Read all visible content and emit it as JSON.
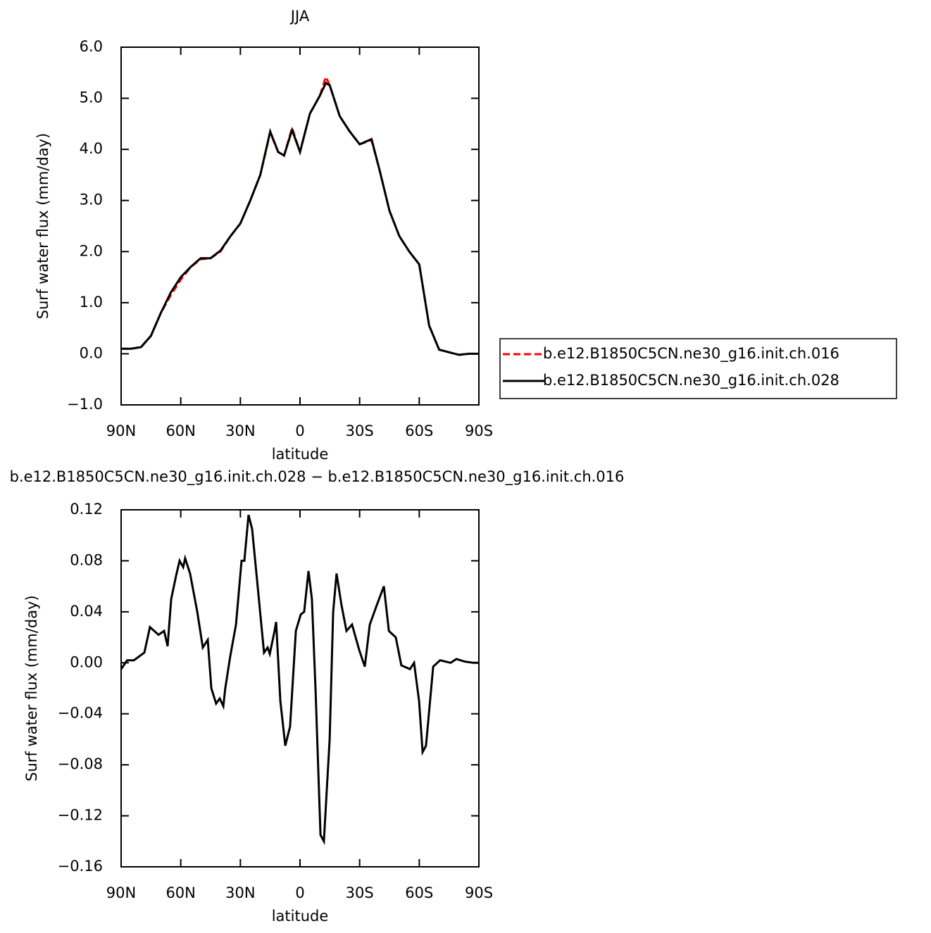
{
  "chart_data": [
    {
      "type": "line",
      "title": "JJA",
      "xlabel": "latitude",
      "ylabel": "Surf water flux (mm/day)",
      "x": [
        90,
        85,
        80,
        75,
        70,
        65,
        60,
        55,
        50,
        45,
        40,
        35,
        30,
        25,
        20,
        15,
        11,
        8,
        4,
        0,
        -5,
        -10,
        -13,
        -15,
        -20,
        -25,
        -30,
        -36,
        -40,
        -45,
        -50,
        -55,
        -60,
        -65,
        -70,
        -75,
        -80,
        -85,
        -90
      ],
      "series": [
        {
          "name": "b.e12.B1850C5CN.ne30_g16.init.ch.016",
          "color": "#ff0000",
          "dashed": true,
          "values": [
            0.1,
            0.1,
            0.13,
            0.35,
            0.8,
            1.15,
            1.45,
            1.7,
            1.85,
            1.87,
            2.0,
            2.3,
            2.55,
            3.0,
            3.5,
            4.33,
            3.95,
            3.88,
            4.42,
            3.95,
            4.7,
            5.05,
            5.42,
            5.25,
            4.65,
            4.35,
            4.1,
            4.18,
            3.6,
            2.8,
            2.3,
            2.0,
            1.75,
            0.55,
            0.08,
            0.03,
            -0.02,
            0.0,
            0.0
          ]
        },
        {
          "name": "b.e12.B1850C5CN.ne30_g16.init.ch.028",
          "color": "#000000",
          "dashed": false,
          "values": [
            0.1,
            0.1,
            0.13,
            0.35,
            0.8,
            1.2,
            1.5,
            1.7,
            1.87,
            1.87,
            2.02,
            2.3,
            2.55,
            3.0,
            3.5,
            4.35,
            3.95,
            3.88,
            4.38,
            3.95,
            4.7,
            5.05,
            5.3,
            5.25,
            4.65,
            4.35,
            4.1,
            4.2,
            3.6,
            2.8,
            2.3,
            2.0,
            1.75,
            0.55,
            0.08,
            0.03,
            -0.02,
            0.0,
            0.0
          ]
        }
      ],
      "xlim": [
        90,
        -90
      ],
      "xticks": [
        {
          "value": 90,
          "label": "90N"
        },
        {
          "value": 60,
          "label": "60N"
        },
        {
          "value": 30,
          "label": "30N"
        },
        0,
        {
          "value": -30,
          "label": "30S"
        },
        {
          "value": -60,
          "label": "60S"
        },
        {
          "value": -90,
          "label": "90S"
        }
      ],
      "ylim": [
        -1,
        6
      ],
      "yticks": [
        {
          "value": 6,
          "label": "6.0"
        },
        {
          "value": 5,
          "label": "5.0"
        },
        {
          "value": 4,
          "label": "4.0"
        },
        {
          "value": 3,
          "label": "3.0"
        },
        {
          "value": 2,
          "label": "2.0"
        },
        {
          "value": 1,
          "label": "1.0"
        },
        {
          "value": 0,
          "label": "0.0"
        },
        {
          "value": -1,
          "label": "−1.0"
        }
      ],
      "legend": "right"
    },
    {
      "type": "line",
      "title": "b.e12.B1850C5CN.ne30_g16.init.ch.028 − b.e12.B1850C5CN.ne30_g16.init.ch.016",
      "xlabel": "latitude",
      "ylabel": "Surf water flux (mm/day)",
      "x": [
        90,
        87,
        83.6,
        78.3,
        75.5,
        71.2,
        68.4,
        66.6,
        64.8,
        62.4,
        60.6,
        58.8,
        57.8,
        55.3,
        51.7,
        48.9,
        46.4,
        44.6,
        42.2,
        40.4,
        38.6,
        37.6,
        35.1,
        32.2,
        29.4,
        28,
        25.9,
        24.1,
        21.6,
        18.1,
        16.3,
        15.2,
        12.8,
        12,
        9.9,
        7.4,
        5,
        2.1,
        -0.4,
        -2.1,
        -4.3,
        -6,
        -7.8,
        -10.3,
        -12,
        -14.9,
        -16.7,
        -18.4,
        -20.9,
        -23.4,
        -26.2,
        -29.8,
        -32.6,
        -35.1,
        -38.6,
        -42.2,
        -44.7,
        -48.2,
        -51,
        -55.3,
        -57.4,
        -59.9,
        -61.7,
        -63.4,
        -67,
        -70.5,
        -75.8,
        -78.7,
        -82.9,
        -87.2,
        -90
      ],
      "series": [
        {
          "color": "#000000",
          "dashed": false,
          "values": [
            -0.005,
            0.002,
            0.002,
            0.008,
            0.028,
            0.022,
            0.025,
            0.013,
            0.05,
            0.068,
            0.08,
            0.075,
            0.082,
            0.07,
            0.04,
            0.012,
            0.018,
            -0.02,
            -0.032,
            -0.028,
            -0.034,
            -0.02,
            0.005,
            0.03,
            0.08,
            0.08,
            0.116,
            0.105,
            0.065,
            0.008,
            0.012,
            0.007,
            0.025,
            0.032,
            -0.03,
            -0.065,
            -0.05,
            0.025,
            0.038,
            0.04,
            0.072,
            0.05,
            -0.02,
            -0.135,
            -0.14,
            -0.06,
            0.04,
            0.07,
            0.045,
            0.025,
            0.03,
            0.01,
            -0.003,
            0.03,
            0.045,
            0.06,
            0.025,
            0.02,
            -0.002,
            -0.005,
            0.0,
            -0.03,
            -0.07,
            -0.065,
            -0.003,
            0.002,
            0.0,
            0.003,
            0.001,
            0.0,
            0.0
          ]
        }
      ],
      "xlim": [
        90,
        -90
      ],
      "xticks": [
        {
          "value": 90,
          "label": "90N"
        },
        {
          "value": 60,
          "label": "60N"
        },
        {
          "value": 30,
          "label": "30N"
        },
        0,
        {
          "value": -30,
          "label": "30S"
        },
        {
          "value": -60,
          "label": "60S"
        },
        {
          "value": -90,
          "label": "90S"
        }
      ],
      "ylim": [
        -0.16,
        0.12
      ],
      "yticks": [
        0.12,
        0.08,
        0.04,
        {
          "value": 0,
          "label": "0.00"
        },
        {
          "value": -0.04,
          "label": "−0.04"
        },
        {
          "value": -0.08,
          "label": "−0.08"
        },
        {
          "value": -0.12,
          "label": "−0.12"
        },
        {
          "value": -0.16,
          "label": "−0.16"
        }
      ]
    }
  ]
}
